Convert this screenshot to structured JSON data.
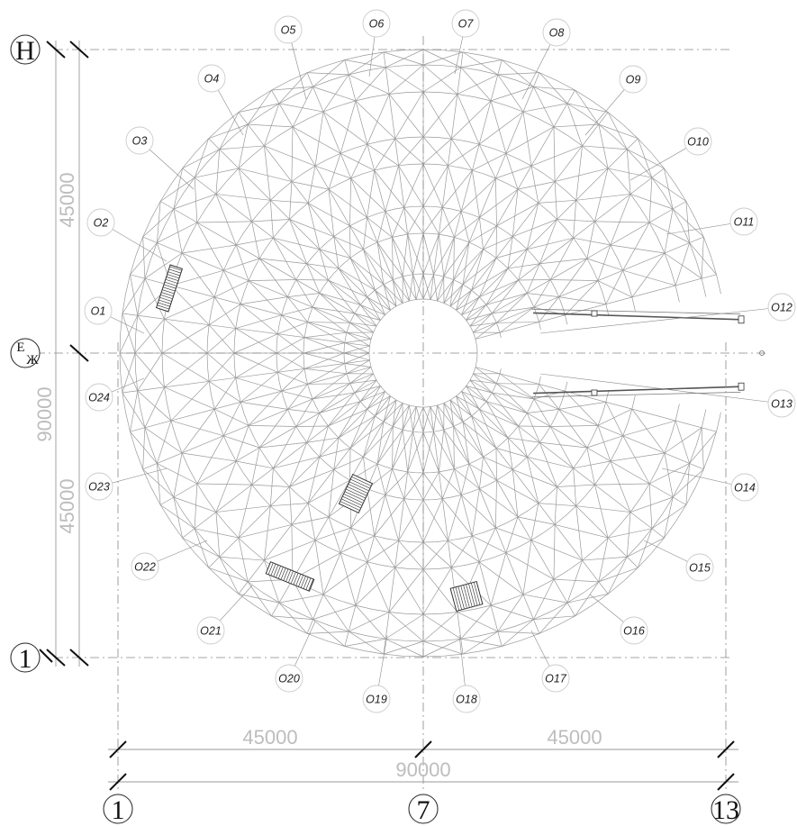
{
  "axes": {
    "horizontal": [
      {
        "id": "axis-H",
        "label": "Н"
      },
      {
        "id": "axis-E",
        "label": "Е",
        "sub": "Ж"
      },
      {
        "id": "axis-1-row",
        "label": "1"
      }
    ],
    "vertical": [
      {
        "id": "axis-1",
        "label": "1"
      },
      {
        "id": "axis-7",
        "label": "7"
      },
      {
        "id": "axis-13",
        "label": "13"
      }
    ]
  },
  "dimensions": {
    "bottom_left": "45000",
    "bottom_right": "45000",
    "bottom_total": "90000",
    "left_top": "45000",
    "left_bottom": "45000",
    "left_total": "90000"
  },
  "callouts": [
    "О1",
    "О2",
    "О3",
    "О4",
    "О5",
    "О6",
    "О7",
    "О8",
    "О9",
    "О10",
    "О11",
    "О12",
    "О13",
    "О14",
    "О15",
    "О16",
    "О17",
    "О18",
    "О19",
    "О20",
    "О21",
    "О22",
    "О23",
    "О24"
  ]
}
